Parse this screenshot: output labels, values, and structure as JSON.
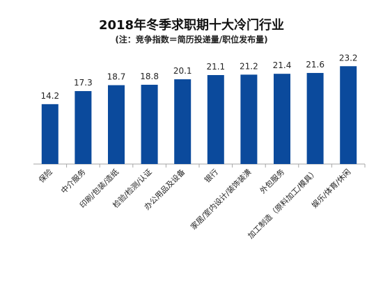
{
  "chart_data": {
    "type": "bar",
    "title": "2018年冬季求职期十大冷门行业",
    "subtitle": "(注：竞争指数＝简历投递量/职位发布量)",
    "categories": [
      "保险",
      "中介服务",
      "印刷/包装/造纸",
      "检验/检测/认证",
      "办公用品及设备",
      "银行",
      "家居/室内设计/装饰装潢",
      "外包服务",
      "加工制造（原料加工/模具）",
      "娱乐/体育/休闲"
    ],
    "values": [
      14.2,
      17.3,
      18.7,
      18.8,
      20.1,
      21.1,
      21.2,
      21.4,
      21.6,
      23.2
    ],
    "value_labels": [
      "14.2",
      "17.3",
      "18.7",
      "18.8",
      "20.1",
      "21.1",
      "21.2",
      "21.4",
      "21.6",
      "23.2"
    ],
    "ylim": [
      0,
      30
    ],
    "grid": false,
    "legend": "none",
    "bar_color": "#0b4a9c"
  }
}
